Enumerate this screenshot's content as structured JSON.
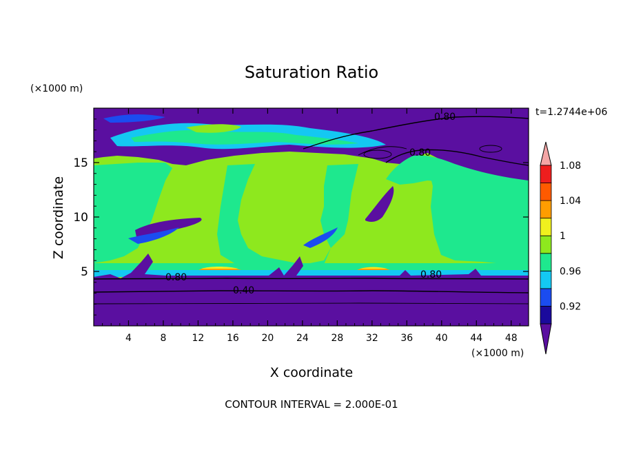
{
  "chart_data": {
    "type": "heatmap",
    "title": "Saturation Ratio",
    "xlabel": "X coordinate",
    "ylabel": "Z coordinate",
    "x_unit": "(×1000 m)",
    "y_unit": "(×1000 m)",
    "xlim": [
      0,
      50
    ],
    "ylim": [
      0,
      20
    ],
    "x_ticks": [
      "4",
      "8",
      "12",
      "16",
      "20",
      "24",
      "28",
      "32",
      "36",
      "40",
      "44",
      "48"
    ],
    "y_ticks": [
      "5",
      "10",
      "15"
    ],
    "time_label": "t=1.2744e+06",
    "footer": "CONTOUR INTERVAL = 2.000E-01",
    "contour_labels": [
      "0.80",
      "0.80",
      "0.80",
      "0.80",
      "0.40"
    ],
    "colorbar": {
      "levels": [
        0.9,
        0.92,
        0.94,
        0.96,
        0.98,
        1.0,
        1.02,
        1.04,
        1.06,
        1.08,
        1.1
      ],
      "tick_labels": [
        "0.92",
        "0.96",
        "1",
        "1.04",
        "1.08"
      ],
      "colors": [
        "#5a0fa0",
        "#1a0a9c",
        "#1b4cf0",
        "#14c8f2",
        "#1ee88e",
        "#8ee81e",
        "#f0f01e",
        "#ff9d00",
        "#ff5a00",
        "#ee1e1e",
        "#f4a6a6"
      ]
    }
  }
}
